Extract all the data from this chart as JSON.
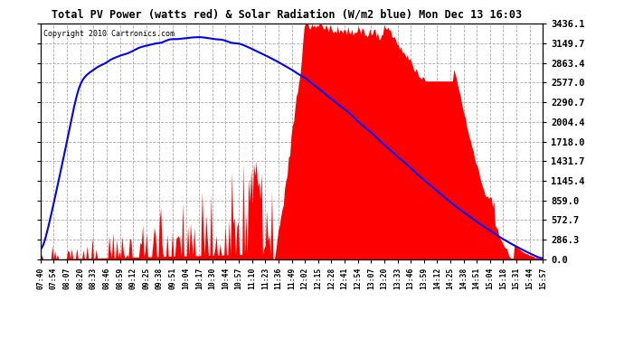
{
  "title": "Total PV Power (watts red) & Solar Radiation (W/m2 blue) Mon Dec 13 16:03",
  "copyright_text": "Copyright 2010 Cartronics.com",
  "background_color": "#ffffff",
  "plot_background_color": "#ffffff",
  "grid_color": "#aaaaaa",
  "x_tick_labels": [
    "07:40",
    "07:54",
    "08:07",
    "08:20",
    "08:33",
    "08:46",
    "08:59",
    "09:12",
    "09:25",
    "09:38",
    "09:51",
    "10:04",
    "10:17",
    "10:30",
    "10:44",
    "10:57",
    "11:10",
    "11:23",
    "11:36",
    "11:49",
    "12:02",
    "12:15",
    "12:28",
    "12:41",
    "12:54",
    "13:07",
    "13:20",
    "13:33",
    "13:46",
    "13:59",
    "14:12",
    "14:25",
    "14:38",
    "14:51",
    "15:04",
    "15:18",
    "15:31",
    "15:44",
    "15:57"
  ],
  "y_tick_values": [
    0.0,
    286.3,
    572.7,
    859.0,
    1145.4,
    1431.7,
    1718.0,
    2004.4,
    2290.7,
    2577.0,
    2863.4,
    3149.7,
    3436.1
  ],
  "pv_color": "#ff0000",
  "solar_color": "#0000ff",
  "y_max": 3436.1,
  "y_min": 0.0,
  "num_points": 390
}
